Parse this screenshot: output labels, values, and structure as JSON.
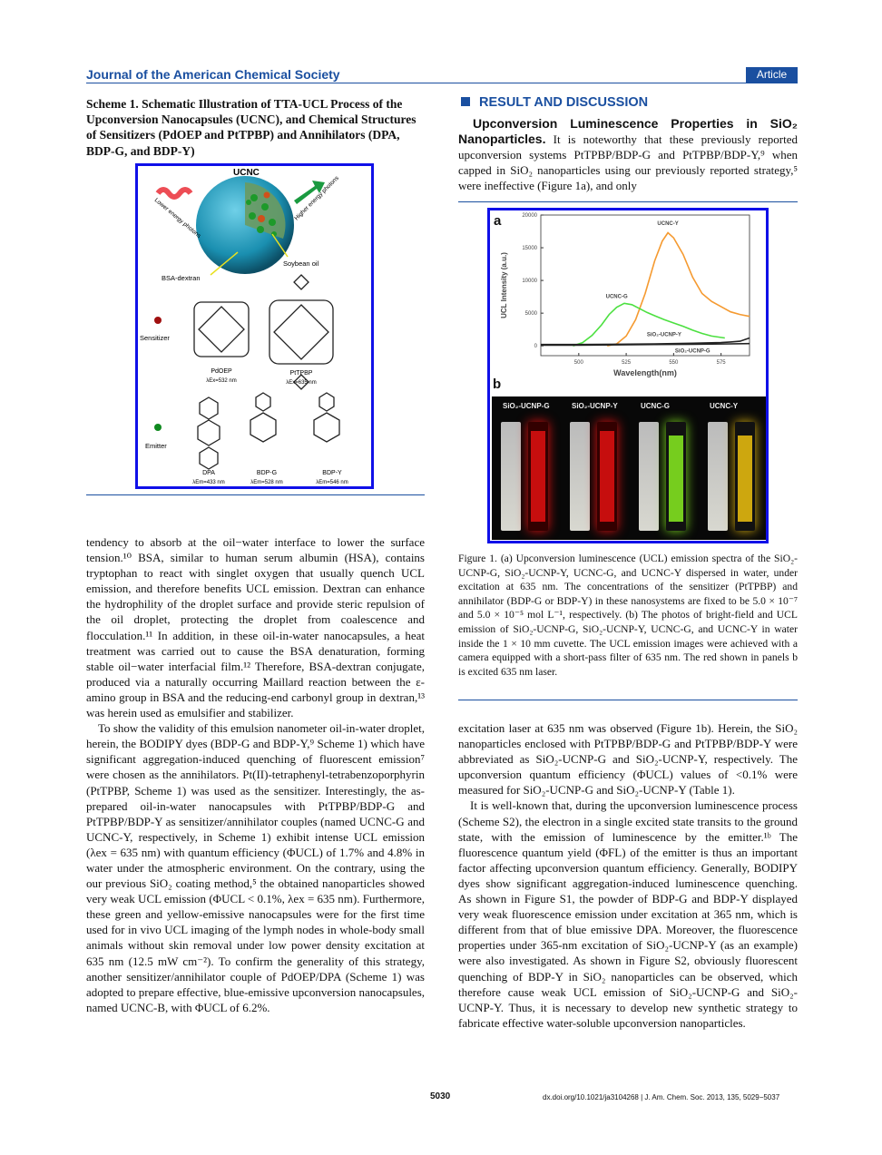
{
  "header": {
    "journal": "Journal of the American Chemical Society",
    "badge": "Article"
  },
  "scheme": {
    "caption": "Scheme 1. Schematic Illustration of TTA-UCL Process of the Upconversion Nanocapsules (UCNC), and Chemical Structures of Sensitizers (PdOEP and PtTPBP) and Annihilators (DPA, BDP-G, and BDP-Y)",
    "title": "UCNC",
    "lower": "Lower energy photons",
    "higher": "Higher energy photons",
    "soybean": "Soybean oil",
    "bsa": "BSA-dextran",
    "sensitizer": "Sensitizer",
    "emitter": "Emitter",
    "molecules": [
      {
        "name": "PdOEP",
        "lambda": "λEx=532 nm"
      },
      {
        "name": "PtTPBP",
        "lambda": "λEx=635 nm"
      },
      {
        "name": "DPA",
        "lambda": "λEm=433 nm"
      },
      {
        "name": "BDP-G",
        "lambda": "λEm=528 nm"
      },
      {
        "name": "BDP-Y",
        "lambda": "λEm=546 nm"
      }
    ]
  },
  "left_text": [
    "tendency to absorb at the oil−water interface to lower the surface tension.¹⁰ BSA, similar to human serum albumin (HSA), contains tryptophan to react with singlet oxygen that usually quench UCL emission, and therefore benefits UCL emission. Dextran can enhance the hydrophility of the droplet surface and provide steric repulsion of the oil droplet, protecting the droplet from coalescence and flocculation.¹¹ In addition, in these oil-in-water nanocapsules, a heat treatment was carried out to cause the BSA denaturation, forming stable oil−water interfacial film.¹² Therefore, BSA-dextran conjugate, produced via a naturally occurring Maillard reaction between the ε-amino group in BSA and the reducing-end carbonyl group in dextran,¹³ was herein used as emulsifier and stabilizer.",
    "To show the validity of this emulsion nanometer oil-in-water droplet, herein, the BODIPY dyes (BDP-G and BDP-Y,⁹ Scheme 1) which have significant aggregation-induced quenching of fluorescent emission⁷ were chosen as the annihilators. Pt(II)-tetraphenyl-tetrabenzoporphyrin (PtTPBP, Scheme 1) was used as the sensitizer. Interestingly, the as-prepared oil-in-water nanocapsules with PtTPBP/BDP-G and PtTPBP/BDP-Y as sensitizer/annihilator couples (named UCNC-G and UCNC-Y, respectively, in Scheme 1) exhibit intense UCL emission (λex = 635 nm) with quantum efficiency (ΦUCL) of 1.7% and 4.8% in water under the atmospheric environment. On the contrary, using the our previous SiO₂ coating method,⁵ the obtained nanoparticles showed very weak UCL emission (ΦUCL < 0.1%, λex = 635 nm). Furthermore, these green and yellow-emissive nanocapsules were for the first time used for in vivo UCL imaging of the lymph nodes in whole-body small animals without skin removal under low power density excitation at 635 nm (12.5 mW cm⁻²). To confirm the generality of this strategy, another sensitizer/annihilator couple of PdOEP/DPA (Scheme 1) was adopted to prepare effective, blue-emissive upconversion nanocapsules, named UCNC-B, with ΦUCL of 6.2%."
  ],
  "section": {
    "title": "RESULT AND DISCUSSION",
    "subhead": "Upconversion Luminescence Properties in SiO₂ Nano­particles.",
    "intro": " It is noteworthy that these previously reported upconversion systems PtTPBP/BDP-G and PtTPBP/BDP-Y,⁹ when capped in SiO₂ nanoparticles using our previously reported strategy,⁵ were ineffective (Figure 1a), and only"
  },
  "figure": {
    "panel_a": "a",
    "panel_b": "b",
    "caption": "Figure 1. (a) Upconversion luminescence (UCL) emission spectra of the SiO₂-UCNP-G, SiO₂-UCNP-Y, UCNC-G, and UCNC-Y dispersed in water, under excitation at 635 nm. The concentrations of the sensitizer (PtTPBP) and annihilator (BDP-G or BDP-Y) in these nanosystems are fixed to be 5.0 × 10⁻⁷ and 5.0 × 10⁻⁵ mol L⁻¹, respectively. (b) The photos of bright-field and UCL emission of SiO₂-UCNP-G, SiO₂-UCNP-Y, UCNC-G, and UCNC-Y in water inside the 1 × 10 mm cuvette. The UCL emission images were achieved with a camera equipped with a short-pass filter of 635 nm. The red shown in panels b is excited 635 nm laser.",
    "vials": [
      "SiO₂-UCNP-G",
      "SiO₂-UCNP-Y",
      "UCNC-G",
      "UCNC-Y"
    ],
    "vial_colors": {
      "bright": "#d8d8d0",
      "red": "#e01010",
      "green": "#7cd820",
      "yellow": "#d8b010"
    }
  },
  "chart_data": {
    "type": "line",
    "xlabel": "Wavelength(nm)",
    "ylabel": "UCL Intensity (a.u.)",
    "xlim": [
      480,
      590
    ],
    "ylim": [
      -1500,
      20000
    ],
    "xticks": [
      500,
      525,
      550,
      575
    ],
    "yticks": [
      0,
      5000,
      10000,
      15000,
      20000
    ],
    "series": [
      {
        "name": "UCNC-Y",
        "color": "#f59a30",
        "x": [
          515,
          520,
          525,
          530,
          535,
          540,
          544,
          547,
          550,
          555,
          560,
          565,
          570,
          575,
          580,
          585,
          590
        ],
        "y": [
          0,
          300,
          1500,
          4000,
          8000,
          13000,
          16000,
          17300,
          16500,
          14000,
          10500,
          8000,
          6800,
          6000,
          5200,
          4800,
          4500
        ]
      },
      {
        "name": "UCNC-G",
        "color": "#4ce040",
        "x": [
          497,
          502,
          507,
          512,
          516,
          520,
          524,
          528,
          532,
          536,
          540,
          545,
          550,
          555,
          560,
          565,
          570,
          577
        ],
        "y": [
          0,
          500,
          1600,
          3200,
          4800,
          5900,
          6500,
          6300,
          5700,
          5100,
          4600,
          4000,
          3500,
          3000,
          2400,
          1900,
          1500,
          1200
        ]
      },
      {
        "name": "SiO₂-UCNP-Y",
        "color": "#222222",
        "x": [
          480,
          500,
          520,
          540,
          560,
          575,
          580,
          585,
          590
        ],
        "y": [
          200,
          200,
          250,
          300,
          400,
          500,
          600,
          700,
          1200
        ]
      },
      {
        "name": "SiO₂-UCNP-G",
        "color": "#222222",
        "x": [
          480,
          500,
          520,
          540,
          560,
          580,
          590
        ],
        "y": [
          100,
          100,
          150,
          200,
          250,
          300,
          350
        ]
      }
    ]
  },
  "right_text": [
    "excitation laser at 635 nm was observed (Figure 1b). Herein, the SiO₂ nanoparticles enclosed with PtTPBP/BDP-G and PtTPBP/BDP-Y were abbreviated as SiO₂-UCNP-G and SiO₂-UCNP-Y, respectively. The upconversion quantum efficiency (ΦUCL) values of <0.1% were measured for SiO₂-UCNP-G and SiO₂-UCNP-Y (Table 1).",
    "It is well-known that, during the upconversion luminescence process (Scheme S2), the electron in a single excited state transits to the ground state, with the emission of luminescence by the emitter.¹ᵇ The fluorescence quantum yield (ΦFL) of the emitter is thus an important factor affecting upconversion quantum efficiency. Generally, BODIPY dyes show significant aggregation-induced luminescence quenching. As shown in Figure S1, the powder of BDP-G and BDP-Y displayed very weak fluorescence emission under excitation at 365 nm, which is different from that of blue emissive DPA. Moreover, the fluorescence properties under 365-nm excitation of SiO₂-UCNP-Y (as an example) were also investigated. As shown in Figure S2, obviously fluorescent quenching of BDP-Y in SiO₂ nanoparticles can be observed, which therefore cause weak UCL emission of SiO₂-UCNP-G and SiO₂-UCNP-Y. Thus, it is necessary to develop new synthetic strategy to fabricate effective water-soluble upconversion nanoparticles."
  ],
  "footer": {
    "page": "5030",
    "doi": "dx.doi.org/10.1021/ja3104268 | J. Am. Chem. Soc. 2013, 135, 5029−5037"
  }
}
